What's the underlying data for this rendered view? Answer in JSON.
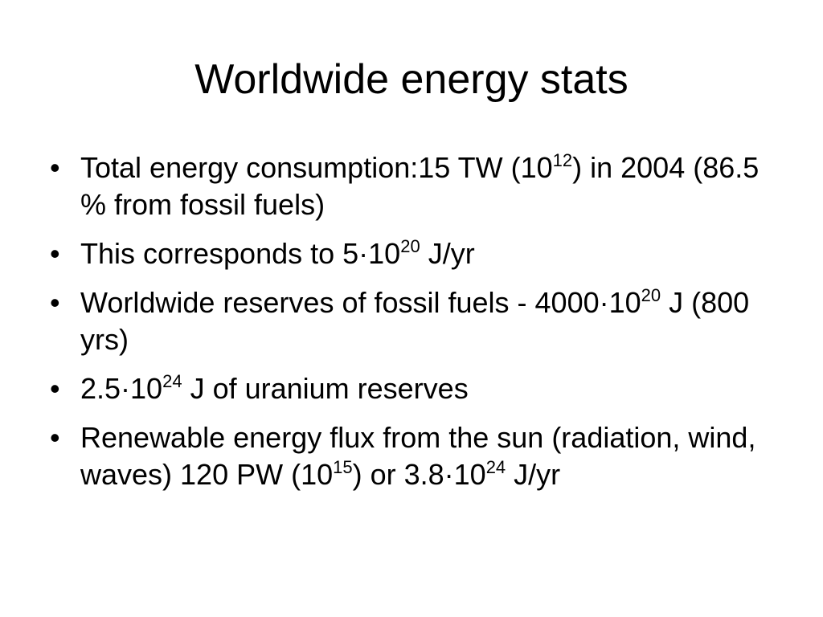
{
  "title": "Worldwide energy stats",
  "bullets": [
    [
      {
        "t": "Total energy consumption:15 TW (10"
      },
      {
        "sup": "12"
      },
      {
        "t": ") in 2004 (86.5 % from fossil fuels)"
      }
    ],
    [
      {
        "t": "This corresponds to 5·10"
      },
      {
        "sup": "20"
      },
      {
        "t": " J/yr"
      }
    ],
    [
      {
        "t": "Worldwide reserves of fossil fuels - 4000·10"
      },
      {
        "sup": "20"
      },
      {
        "t": " J (800 yrs)"
      }
    ],
    [
      {
        "t": "2.5·10"
      },
      {
        "sup": "24"
      },
      {
        "t": " J of uranium reserves"
      }
    ],
    [
      {
        "t": "Renewable energy flux from the sun (radiation, wind, waves) 120 PW (10"
      },
      {
        "sup": "15"
      },
      {
        "t": ") or 3.8·10"
      },
      {
        "sup": "24"
      },
      {
        "t": " J/yr"
      }
    ]
  ]
}
